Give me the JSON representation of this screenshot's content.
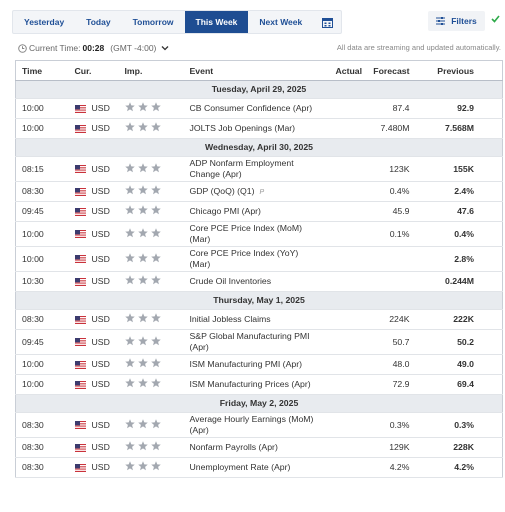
{
  "tabs": [
    "Yesterday",
    "Today",
    "Tomorrow",
    "This Week",
    "Next Week"
  ],
  "active_tab": 3,
  "filters_label": "Filters",
  "time_label": "Current Time:",
  "time_value": "00:28",
  "timezone": "(GMT -4:00)",
  "notice": "All data are streaming and updated automatically.",
  "columns": [
    "Time",
    "Cur.",
    "Imp.",
    "Event",
    "Actual",
    "Forecast",
    "Previous"
  ],
  "days": [
    {
      "date": "Tuesday, April 29, 2025",
      "events": [
        {
          "time": "10:00",
          "currency": "USD",
          "importance": 3,
          "event": [
            "CB Consumer Confidence (Apr)"
          ],
          "actual": null,
          "forecast": "87.4",
          "previous": "92.9"
        },
        {
          "time": "10:00",
          "currency": "USD",
          "importance": 3,
          "event": [
            "JOLTS Job Openings (Mar)"
          ],
          "actual": null,
          "forecast": "7.480M",
          "previous": "7.568M"
        }
      ]
    },
    {
      "date": "Wednesday, April 30, 2025",
      "events": [
        {
          "time": "08:15",
          "currency": "USD",
          "importance": 3,
          "event": [
            "ADP Nonfarm Employment",
            "Change (Apr)"
          ],
          "actual": null,
          "forecast": "123K",
          "previous": "155K"
        },
        {
          "time": "08:30",
          "currency": "USD",
          "importance": 3,
          "event": [
            "GDP (QoQ) (Q1)"
          ],
          "note": "P",
          "actual": null,
          "forecast": "0.4%",
          "previous": "2.4%"
        },
        {
          "time": "09:45",
          "currency": "USD",
          "importance": 3,
          "event": [
            "Chicago PMI (Apr)"
          ],
          "actual": null,
          "forecast": "45.9",
          "previous": "47.6"
        },
        {
          "time": "10:00",
          "currency": "USD",
          "importance": 3,
          "event": [
            "Core PCE Price Index (MoM)",
            "(Mar)"
          ],
          "actual": null,
          "forecast": "0.1%",
          "previous": "0.4%"
        },
        {
          "time": "10:00",
          "currency": "USD",
          "importance": 3,
          "event": [
            "Core PCE Price Index (YoY)",
            "(Mar)"
          ],
          "actual": null,
          "forecast": null,
          "previous": "2.8%"
        },
        {
          "time": "10:30",
          "currency": "USD",
          "importance": 3,
          "event": [
            "Crude Oil Inventories"
          ],
          "actual": null,
          "forecast": null,
          "previous": "0.244M"
        }
      ]
    },
    {
      "date": "Thursday, May 1, 2025",
      "events": [
        {
          "time": "08:30",
          "currency": "USD",
          "importance": 3,
          "event": [
            "Initial Jobless Claims"
          ],
          "actual": null,
          "forecast": "224K",
          "previous": "222K"
        },
        {
          "time": "09:45",
          "currency": "USD",
          "importance": 3,
          "event": [
            "S&P Global Manufacturing PMI",
            "(Apr)"
          ],
          "actual": null,
          "forecast": "50.7",
          "previous": "50.2"
        },
        {
          "time": "10:00",
          "currency": "USD",
          "importance": 3,
          "event": [
            "ISM Manufacturing PMI (Apr)"
          ],
          "actual": null,
          "forecast": "48.0",
          "previous": "49.0"
        },
        {
          "time": "10:00",
          "currency": "USD",
          "importance": 3,
          "event": [
            "ISM Manufacturing Prices (Apr)"
          ],
          "actual": null,
          "forecast": "72.9",
          "previous": "69.4"
        }
      ]
    },
    {
      "date": "Friday, May 2, 2025",
      "events": [
        {
          "time": "08:30",
          "currency": "USD",
          "importance": 3,
          "event": [
            "Average Hourly Earnings (MoM)",
            "(Apr)"
          ],
          "actual": null,
          "forecast": "0.3%",
          "previous": "0.3%"
        },
        {
          "time": "08:30",
          "currency": "USD",
          "importance": 3,
          "event": [
            "Nonfarm Payrolls (Apr)"
          ],
          "actual": null,
          "forecast": "129K",
          "previous": "228K"
        },
        {
          "time": "08:30",
          "currency": "USD",
          "importance": 3,
          "event": [
            "Unemployment Rate (Apr)"
          ],
          "actual": null,
          "forecast": "4.2%",
          "previous": "4.2%"
        }
      ]
    }
  ]
}
